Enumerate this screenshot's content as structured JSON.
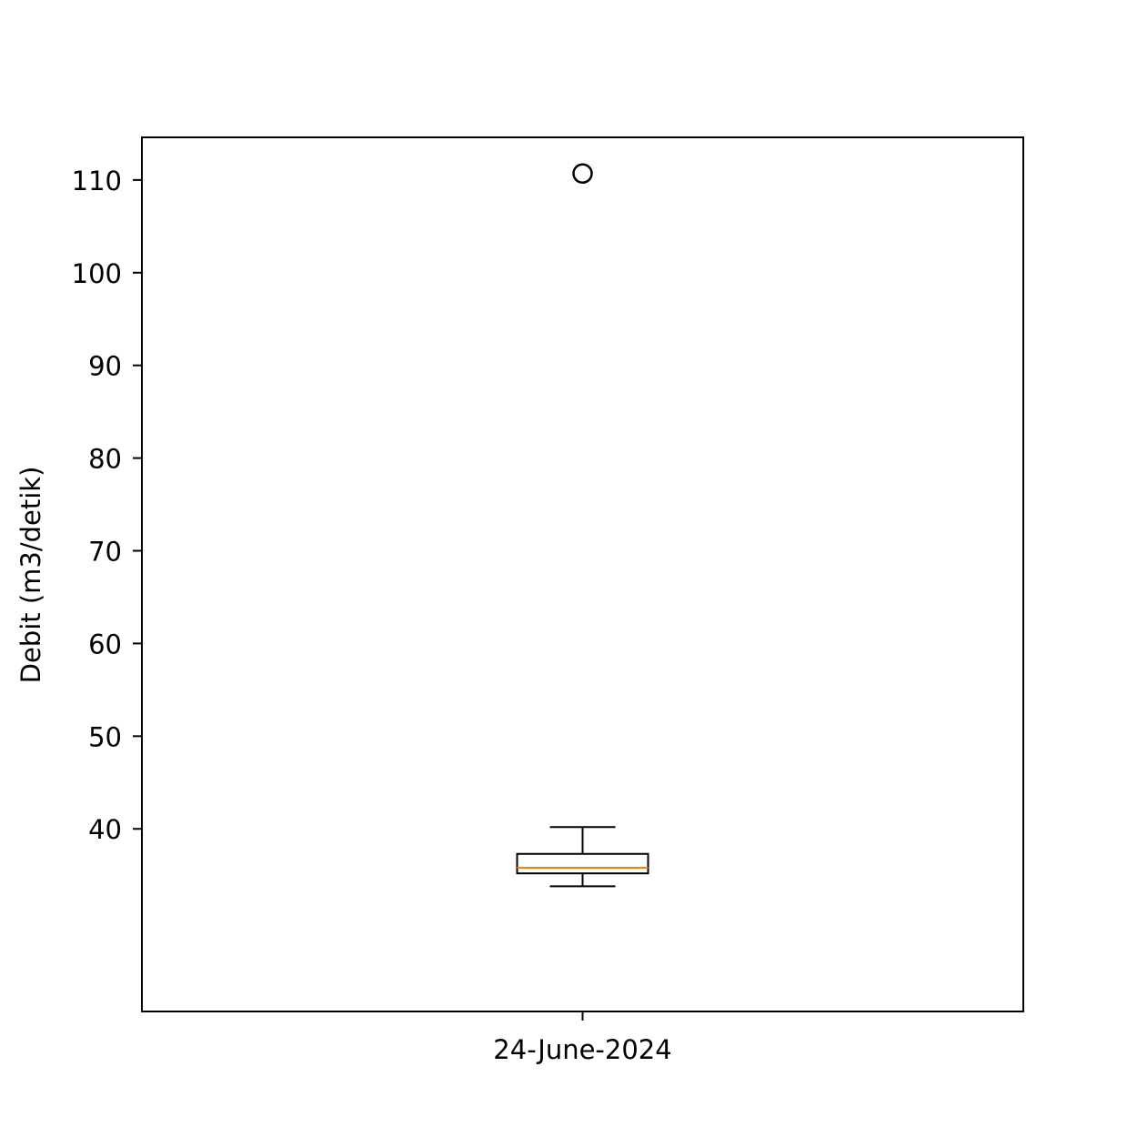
{
  "chart_data": {
    "type": "box",
    "categories": [
      "24-June-2024"
    ],
    "ylabel": "Debit (m3/detik)",
    "xlabel": "",
    "title": "",
    "ylim": [
      20.3,
      114.6
    ],
    "yticks": [
      40,
      50,
      60,
      70,
      80,
      90,
      100,
      110
    ],
    "grid": false,
    "boxes": [
      {
        "category": "24-June-2024",
        "whisker_low": 33.8,
        "q1": 35.2,
        "median": 35.8,
        "q3": 37.3,
        "whisker_high": 40.2,
        "outliers": [
          110.7
        ]
      }
    ],
    "colors": {
      "box": "#000000",
      "median": "#ff7f0e",
      "outlier": "#000000"
    }
  }
}
